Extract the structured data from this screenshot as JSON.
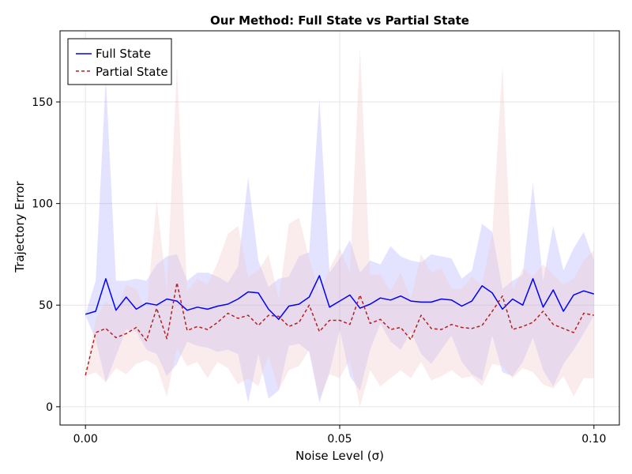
{
  "chart_data": {
    "type": "line",
    "title": "Our Method: Full State vs Partial State",
    "xlabel": "Noise Level (σ)",
    "ylabel": "Trajectory Error",
    "xlim": [
      -0.005,
      0.105
    ],
    "ylim": [
      -9,
      185
    ],
    "xticks": [
      0.0,
      0.05,
      0.1
    ],
    "xtick_labels": [
      "0.00",
      "0.05",
      "0.10"
    ],
    "yticks": [
      0,
      50,
      100,
      150
    ],
    "ytick_labels": [
      "0",
      "50",
      "100",
      "150"
    ],
    "grid": true,
    "legend_position": "top-left",
    "x": [
      0.0,
      0.002,
      0.004,
      0.006,
      0.008,
      0.01,
      0.012,
      0.014,
      0.016,
      0.018,
      0.02,
      0.022,
      0.024,
      0.026,
      0.028,
      0.03,
      0.032,
      0.034,
      0.036,
      0.038,
      0.04,
      0.042,
      0.044,
      0.046,
      0.048,
      0.05,
      0.052,
      0.054,
      0.056,
      0.058,
      0.06,
      0.062,
      0.064,
      0.066,
      0.068,
      0.07,
      0.072,
      0.074,
      0.076,
      0.078,
      0.08,
      0.082,
      0.084,
      0.086,
      0.088,
      0.09,
      0.092,
      0.094,
      0.096,
      0.098,
      0.1
    ],
    "series": [
      {
        "name": "Full State",
        "color": "#0000ff",
        "style": "solid",
        "band_color": "#6666ff",
        "values": [
          45.5,
          47,
          63,
          47.5,
          54,
          48,
          51,
          50,
          53,
          52,
          47.5,
          49,
          48,
          49.5,
          50.5,
          53,
          56.5,
          56,
          48,
          43,
          49.5,
          50.5,
          54,
          64.5,
          49,
          52,
          55,
          48.5,
          50.5,
          53.5,
          52.5,
          54.5,
          52,
          51.5,
          51.5,
          53,
          52.5,
          49.5,
          52,
          59.5,
          56,
          48,
          53,
          50,
          63,
          49,
          57.5,
          47,
          55,
          57,
          55.5
        ],
        "lower": [
          45,
          33,
          12,
          25,
          38,
          37,
          28,
          26,
          15,
          21,
          32,
          30,
          29,
          27,
          28,
          26,
          2,
          26,
          4,
          8,
          30,
          31,
          27,
          2,
          17,
          38,
          15,
          8,
          28,
          41,
          32,
          28,
          37,
          26,
          21,
          28,
          35,
          22,
          16,
          13,
          35,
          17,
          15,
          22,
          34,
          18,
          10,
          21,
          28,
          36,
          45
        ],
        "upper": [
          45.5,
          62,
          162,
          62,
          62,
          63,
          62,
          70,
          74,
          75,
          62,
          66,
          66,
          64,
          61,
          69,
          113,
          72,
          59,
          63,
          64,
          74,
          76,
          152,
          66,
          73,
          82,
          66,
          72,
          70,
          79,
          74,
          72,
          71,
          75,
          74,
          73,
          63,
          67,
          90,
          86,
          58,
          62,
          65,
          110,
          62,
          89,
          67,
          78,
          86,
          72
        ]
      },
      {
        "name": "Partial State",
        "color": "#b22222",
        "style": "dashed",
        "band_color": "#f0c8c8",
        "values": [
          15.5,
          36.5,
          38.5,
          34,
          36,
          39,
          32.5,
          48.5,
          33.5,
          61,
          37.5,
          39.5,
          38,
          41.5,
          46,
          43.5,
          45,
          40,
          45,
          44.5,
          39.5,
          41.5,
          50,
          37,
          42.5,
          42.5,
          40.5,
          55,
          41,
          43,
          38,
          39,
          33,
          45,
          38.5,
          38,
          40.5,
          39,
          38.5,
          40,
          47,
          54.5,
          38,
          39.5,
          41.5,
          47,
          40.5,
          38.5,
          36.5,
          46,
          45
        ],
        "lower": [
          15,
          17,
          12,
          19,
          16,
          21,
          23,
          20,
          5,
          29,
          20,
          22,
          14,
          22,
          19,
          11,
          14,
          10,
          25,
          8,
          18,
          20,
          28,
          4,
          16,
          14,
          23,
          0,
          18,
          10,
          14,
          18,
          14,
          22,
          13,
          15,
          18,
          14,
          15,
          10,
          21,
          20,
          14,
          19,
          17,
          11,
          9,
          15,
          5,
          14,
          14
        ],
        "upper": [
          16,
          43,
          52,
          47,
          60,
          58,
          47,
          102,
          57,
          168,
          57,
          63,
          60,
          71,
          85,
          89,
          64,
          67,
          75,
          53,
          90,
          93,
          73,
          56,
          68,
          78,
          66,
          177,
          65,
          65,
          57,
          66,
          53,
          75,
          66,
          68,
          58,
          58,
          64,
          60,
          85,
          168,
          57,
          68,
          64,
          70,
          65,
          60,
          63,
          72,
          77
        ]
      }
    ]
  }
}
